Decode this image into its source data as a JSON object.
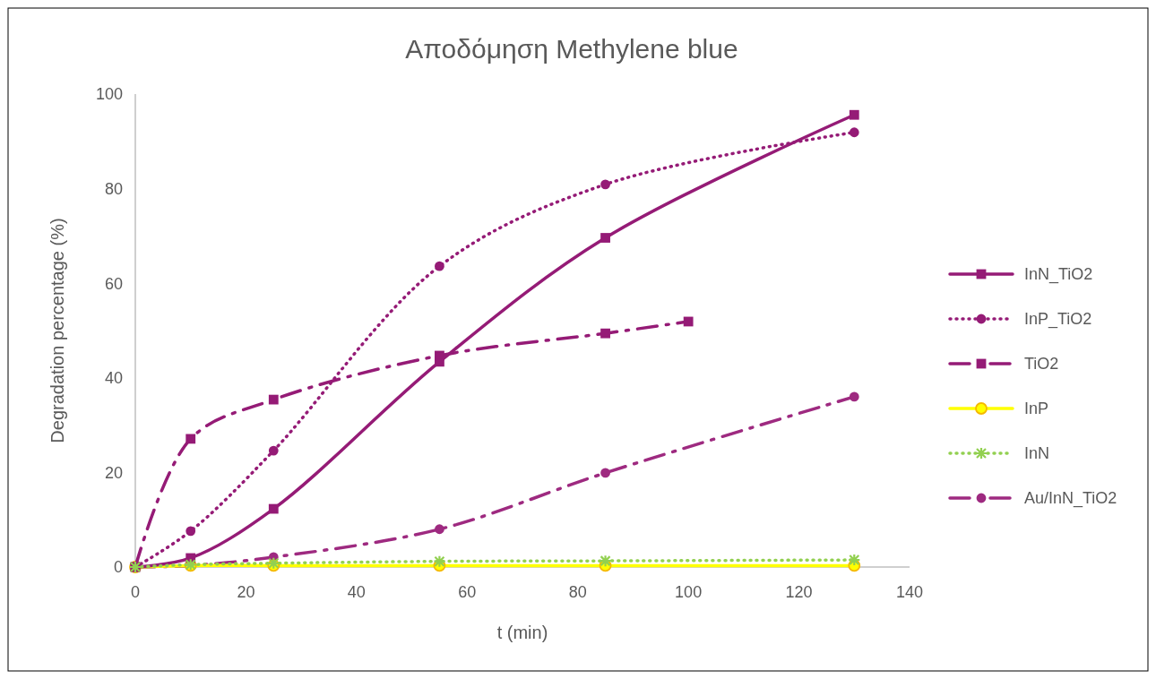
{
  "chart_data": {
    "type": "line",
    "title": "Αποδόμηση Methylene blue",
    "xlabel": "t (min)",
    "ylabel": "Degradation percentage (%)",
    "xlim": [
      0,
      140
    ],
    "xticks": [
      0,
      20,
      40,
      60,
      80,
      100,
      120,
      140
    ],
    "ylim": [
      0,
      100
    ],
    "yticks": [
      0,
      20,
      40,
      60,
      80,
      100
    ],
    "grid": false,
    "legend": "right",
    "series": [
      {
        "name": "InN_TiO2",
        "color": "#951b76",
        "x": [
          0,
          10,
          25,
          55,
          85,
          130
        ],
        "values": [
          0,
          1.9,
          12.3,
          43.4,
          69.6,
          95.6
        ],
        "marker": "square",
        "line_style": "solid"
      },
      {
        "name": "InP_TiO2",
        "color": "#951b76",
        "x": [
          0,
          10,
          25,
          55,
          85,
          130
        ],
        "values": [
          0,
          7.6,
          24.6,
          63.6,
          80.9,
          91.9
        ],
        "marker": "circle",
        "line_style": "dotted"
      },
      {
        "name": "TiO2",
        "color": "#951b76",
        "x": [
          0,
          10,
          25,
          55,
          85,
          100
        ],
        "values": [
          0,
          27.1,
          35.4,
          44.7,
          49.4,
          51.9
        ],
        "marker": "square",
        "line_style": "dashed"
      },
      {
        "name": "InP",
        "color": "#ffff00",
        "x": [
          0,
          10,
          25,
          55,
          85,
          130
        ],
        "values": [
          0,
          0.3,
          0.3,
          0.3,
          0.3,
          0.3
        ],
        "marker": "circle",
        "line_style": "solid"
      },
      {
        "name": "InN",
        "color": "#92d050",
        "x": [
          0,
          10,
          25,
          55,
          85,
          130
        ],
        "values": [
          0,
          0.5,
          0.8,
          1.2,
          1.3,
          1.5
        ],
        "marker": "cross",
        "line_style": "dotted"
      },
      {
        "name": "Au/InN_TiO2",
        "color": "#9e2a80",
        "x": [
          0,
          10,
          25,
          55,
          85,
          130
        ],
        "values": [
          0,
          0.3,
          2.1,
          8,
          19.9,
          36
        ],
        "marker": "circle",
        "line_style": "dashed"
      }
    ]
  }
}
